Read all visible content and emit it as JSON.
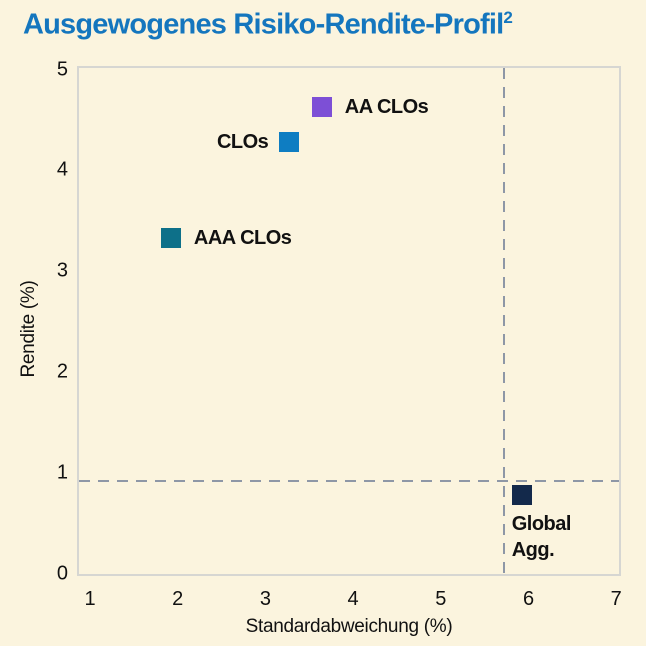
{
  "title": {
    "text": "Ausgewogenes Risiko-Rendite-Profil",
    "superscript": "2"
  },
  "colors": {
    "background": "#FBF4DE",
    "title": "#1476BE",
    "text": "#111111",
    "plot_border": "#D6D6D2",
    "dashed_line": "#8E97A6"
  },
  "chart_data": {
    "type": "scatter",
    "title": "Ausgewogenes Risiko-Rendite-Profil",
    "title_footnote": "2",
    "xlabel": "Standardabweichung (%)",
    "ylabel": "Rendite (%)",
    "xlim": [
      1,
      7
    ],
    "ylim": [
      0,
      5
    ],
    "x_ticks": [
      "1",
      "2",
      "3",
      "4",
      "5",
      "6",
      "7"
    ],
    "y_ticks": [
      "0",
      "1",
      "2",
      "3",
      "4",
      "5"
    ],
    "grid": false,
    "legend": false,
    "marker_shape": "square",
    "points": [
      {
        "label": "AAA CLOs",
        "x": 1.9,
        "y": 3.35,
        "color": "#0D7089",
        "label_position": "right",
        "label_lines": [
          "AAA CLOs"
        ]
      },
      {
        "label": "CLOs",
        "x": 3.25,
        "y": 4.3,
        "color": "#0E7DC2",
        "label_position": "left",
        "label_lines": [
          "CLOs"
        ]
      },
      {
        "label": "AA CLOs",
        "x": 3.62,
        "y": 4.65,
        "color": "#7D4FD6",
        "label_position": "right",
        "label_lines": [
          "AA CLOs"
        ]
      },
      {
        "label": "Global Agg.",
        "x": 5.9,
        "y": 0.8,
        "color": "#13294B",
        "label_position": "below",
        "label_lines": [
          "Global",
          "Agg."
        ]
      }
    ],
    "reference_lines": [
      {
        "orientation": "vertical",
        "x": 5.7
      },
      {
        "orientation": "horizontal",
        "y": 0.94
      }
    ]
  }
}
